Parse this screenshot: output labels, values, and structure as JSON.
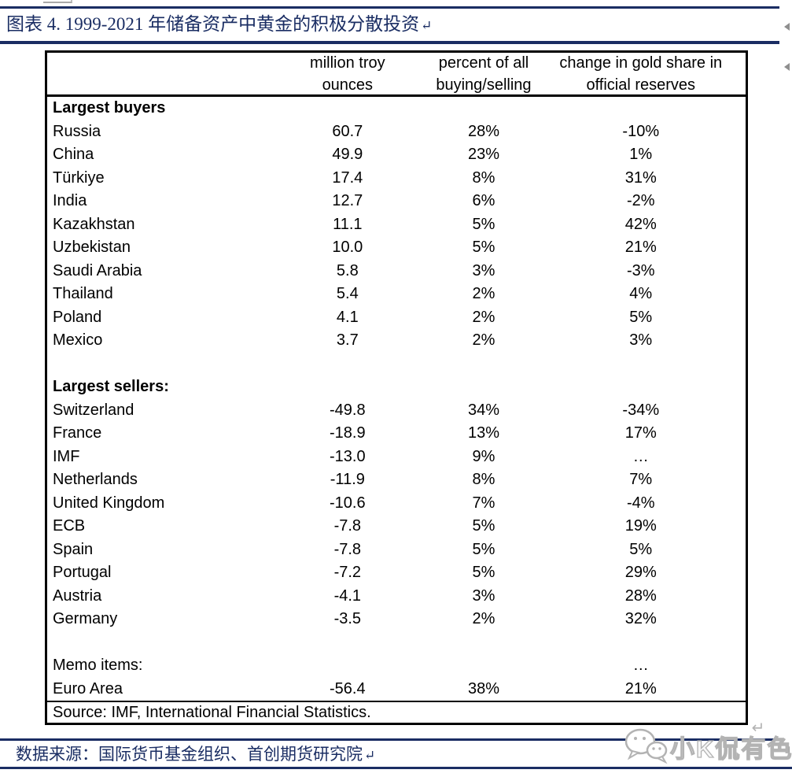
{
  "page": {
    "title": "图表 4. 1999-2021 年储备资产中黄金的积极分散投资",
    "title_return_mark": "↵",
    "footer_source_line": "数据来源：国际货币基金组织、首创期货研究院",
    "footer_return_mark": "↵",
    "colors": {
      "accent_navy": "#1a2d63",
      "table_border": "#000000",
      "watermark_gray": "#b3b3b3"
    }
  },
  "watermark": {
    "text": "小K侃有色",
    "icon": "wechat-face-icon",
    "return_mark": "↵"
  },
  "table": {
    "column_headers": [
      {
        "line1": "",
        "line2": ""
      },
      {
        "line1": "million troy",
        "line2": "ounces"
      },
      {
        "line1": "percent of all",
        "line2": "buying/selling"
      },
      {
        "line1": "change in gold share in",
        "line2": "official reserves"
      }
    ],
    "rows": [
      {
        "style": "section",
        "label": "Largest buyers",
        "ounces": "",
        "pct": "",
        "change": ""
      },
      {
        "style": "data",
        "label": "Russia",
        "ounces": "60.7",
        "pct": "28%",
        "change": "-10%"
      },
      {
        "style": "data",
        "label": "China",
        "ounces": "49.9",
        "pct": "23%",
        "change": "1%"
      },
      {
        "style": "data",
        "label": "Türkiye",
        "ounces": "17.4",
        "pct": "8%",
        "change": "31%"
      },
      {
        "style": "data",
        "label": "India",
        "ounces": "12.7",
        "pct": "6%",
        "change": "-2%"
      },
      {
        "style": "data",
        "label": "Kazakhstan",
        "ounces": "11.1",
        "pct": "5%",
        "change": "42%"
      },
      {
        "style": "data",
        "label": "Uzbekistan",
        "ounces": "10.0",
        "pct": "5%",
        "change": "21%"
      },
      {
        "style": "data",
        "label": "Saudi Arabia",
        "ounces": "5.8",
        "pct": "3%",
        "change": "-3%"
      },
      {
        "style": "data",
        "label": "Thailand",
        "ounces": "5.4",
        "pct": "2%",
        "change": "4%"
      },
      {
        "style": "data",
        "label": "Poland",
        "ounces": "4.1",
        "pct": "2%",
        "change": "5%"
      },
      {
        "style": "data",
        "label": "Mexico",
        "ounces": "3.7",
        "pct": "2%",
        "change": "3%"
      },
      {
        "style": "blank",
        "label": "",
        "ounces": "",
        "pct": "",
        "change": ""
      },
      {
        "style": "section",
        "label": "Largest sellers:",
        "ounces": "",
        "pct": "",
        "change": ""
      },
      {
        "style": "data",
        "label": "Switzerland",
        "ounces": "-49.8",
        "pct": "34%",
        "change": "-34%"
      },
      {
        "style": "data",
        "label": "France",
        "ounces": "-18.9",
        "pct": "13%",
        "change": "17%"
      },
      {
        "style": "data",
        "label": "IMF",
        "ounces": "-13.0",
        "pct": "9%",
        "change": "…"
      },
      {
        "style": "data",
        "label": "Netherlands",
        "ounces": "-11.9",
        "pct": "8%",
        "change": "7%"
      },
      {
        "style": "data",
        "label": "United Kingdom",
        "ounces": "-10.6",
        "pct": "7%",
        "change": "-4%"
      },
      {
        "style": "data",
        "label": "ECB",
        "ounces": "-7.8",
        "pct": "5%",
        "change": "19%"
      },
      {
        "style": "data",
        "label": "Spain",
        "ounces": "-7.8",
        "pct": "5%",
        "change": "5%"
      },
      {
        "style": "data",
        "label": "Portugal",
        "ounces": "-7.2",
        "pct": "5%",
        "change": "29%"
      },
      {
        "style": "data",
        "label": "Austria",
        "ounces": "-4.1",
        "pct": "3%",
        "change": "28%"
      },
      {
        "style": "data",
        "label": "Germany",
        "ounces": "-3.5",
        "pct": "2%",
        "change": "32%"
      },
      {
        "style": "blank",
        "label": "",
        "ounces": "",
        "pct": "",
        "change": ""
      },
      {
        "style": "data",
        "label": "Memo items:",
        "ounces": "",
        "pct": "",
        "change": "…"
      },
      {
        "style": "data",
        "label": "Euro Area",
        "ounces": "-56.4",
        "pct": "38%",
        "change": "21%"
      }
    ],
    "source_note": "Source: IMF, International Financial Statistics."
  }
}
